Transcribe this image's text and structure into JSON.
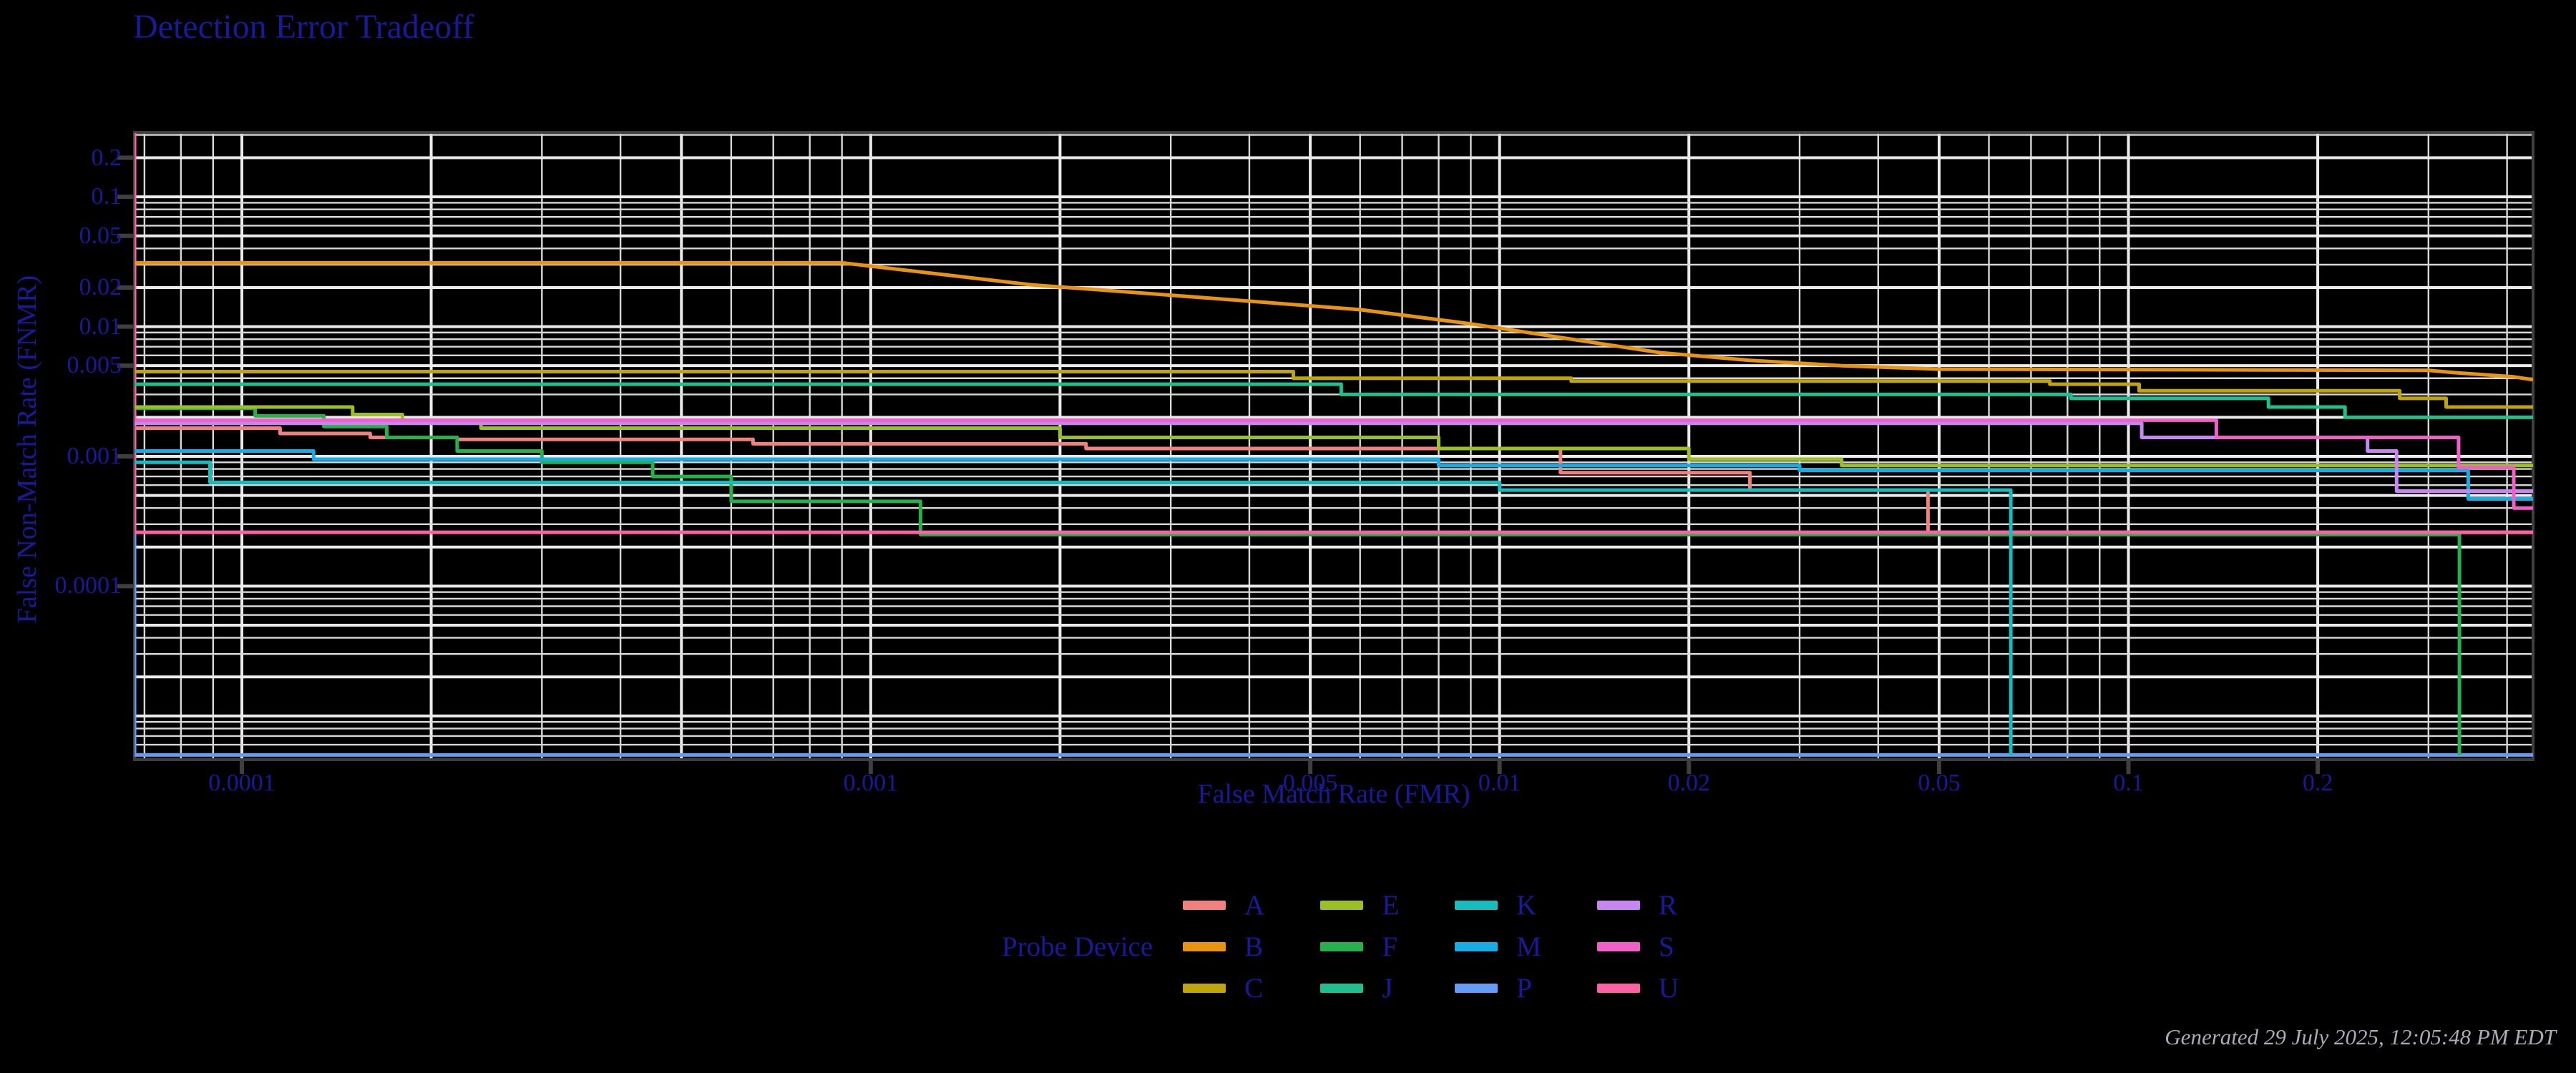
{
  "title": "Detection Error Tradeoff",
  "footer": {
    "generated": "Generated 29 July 2025, 12:05:48 PM EDT"
  },
  "legend": {
    "title": "Probe Device",
    "items": [
      "A",
      "B",
      "C",
      "E",
      "F",
      "J",
      "K",
      "M",
      "P",
      "R",
      "S",
      "U"
    ]
  },
  "colors": {
    "background": "#000000",
    "text_navy": "#1A1A99",
    "timestamp_gray": "#ABABB5",
    "grid_major": "#EBEBEB",
    "grid_minor": "#D8D8D8",
    "frame": "#3F3F3F",
    "tick": "#3F3F3F"
  },
  "chart_data": {
    "type": "line",
    "title": "Detection Error Tradeoff",
    "xlabel": "False Match Rate (FMR)",
    "ylabel": "False Non-Match Rate (FNMR)",
    "log_x": true,
    "log_y": true,
    "grid": "both",
    "xlim": [
      6.75e-05,
      0.44
    ],
    "ylim": [
      4.6e-06,
      0.314
    ],
    "x_ticks": [
      {
        "v": 0.0001,
        "label": "0.0001"
      },
      {
        "v": 0.001,
        "label": "0.001"
      },
      {
        "v": 0.005,
        "label": "0.005"
      },
      {
        "v": 0.01,
        "label": "0.01"
      },
      {
        "v": 0.02,
        "label": "0.02"
      },
      {
        "v": 0.05,
        "label": "0.05"
      },
      {
        "v": 0.1,
        "label": "0.1"
      },
      {
        "v": 0.2,
        "label": "0.2"
      }
    ],
    "y_ticks": [
      {
        "v": 0.2,
        "label": "0.2"
      },
      {
        "v": 0.1,
        "label": "0.1"
      },
      {
        "v": 0.05,
        "label": "0.05"
      },
      {
        "v": 0.02,
        "label": "0.02"
      },
      {
        "v": 0.01,
        "label": "0.01"
      },
      {
        "v": 0.005,
        "label": "0.005"
      },
      {
        "v": 0.001,
        "label": "0.001"
      },
      {
        "v": 0.0001,
        "label": "0.0001"
      }
    ],
    "legend_title": "Probe Device",
    "legend_position": "bottom",
    "series": [
      {
        "name": "P",
        "color": "#649CF5",
        "mode": "step",
        "points": [
          [
            6.75e-05,
            0.00055
          ],
          [
            6.75e-05,
            5e-06
          ],
          [
            0.44,
            5e-06
          ]
        ]
      },
      {
        "name": "A",
        "color": "#F0817E",
        "mode": "step",
        "points": [
          [
            6.75e-05,
            0.00165
          ],
          [
            0.000115,
            0.0015
          ],
          [
            0.00016,
            0.0014
          ],
          [
            0.00022,
            0.00135
          ],
          [
            0.00065,
            0.00125
          ],
          [
            0.0022,
            0.00115
          ],
          [
            0.0125,
            0.00075
          ],
          [
            0.025,
            0.00055
          ],
          [
            0.048,
            0.00026
          ],
          [
            0.44,
            0.00026
          ]
        ]
      },
      {
        "name": "F",
        "color": "#27B14C",
        "mode": "step",
        "points": [
          [
            6.75e-05,
            0.00235
          ],
          [
            0.000105,
            0.00205
          ],
          [
            0.000135,
            0.0017
          ],
          [
            0.00017,
            0.0014
          ],
          [
            0.00022,
            0.0011
          ],
          [
            0.0003,
            0.0009
          ],
          [
            0.00045,
            0.0007
          ],
          [
            0.0006,
            0.00045
          ],
          [
            0.0012,
            0.00025
          ],
          [
            0.336,
            0.00025
          ],
          [
            0.336,
            5e-06
          ]
        ]
      },
      {
        "name": "U",
        "color": "#FB62A4",
        "mode": "step",
        "points": [
          [
            6.75e-05,
            0.31
          ],
          [
            6.75e-05,
            0.00026
          ],
          [
            0.44,
            0.00026
          ]
        ]
      },
      {
        "name": "B",
        "color": "#E8940F",
        "mode": "linear",
        "points": [
          [
            6.75e-05,
            0.031
          ],
          [
            0.0009,
            0.031
          ],
          [
            0.0018,
            0.021
          ],
          [
            0.0035,
            0.0165
          ],
          [
            0.006,
            0.0135
          ],
          [
            0.009,
            0.0105
          ],
          [
            0.013,
            0.008
          ],
          [
            0.018,
            0.0063
          ],
          [
            0.025,
            0.0055
          ],
          [
            0.035,
            0.005
          ],
          [
            0.05,
            0.0047
          ],
          [
            0.3,
            0.0046
          ],
          [
            0.334,
            0.0044
          ],
          [
            0.41,
            0.0041
          ],
          [
            0.44,
            0.0039
          ]
        ]
      },
      {
        "name": "C",
        "color": "#BFA40A",
        "mode": "step",
        "points": [
          [
            6.75e-05,
            0.0045
          ],
          [
            0.0047,
            0.004
          ],
          [
            0.013,
            0.0038
          ],
          [
            0.075,
            0.0036
          ],
          [
            0.104,
            0.0032
          ],
          [
            0.27,
            0.0028
          ],
          [
            0.32,
            0.0024
          ],
          [
            0.44,
            0.0024
          ]
        ]
      },
      {
        "name": "E",
        "color": "#9CBF26",
        "mode": "step",
        "points": [
          [
            6.75e-05,
            0.0024
          ],
          [
            0.00015,
            0.0021
          ],
          [
            0.00018,
            0.00185
          ],
          [
            0.00024,
            0.00165
          ],
          [
            0.002,
            0.0014
          ],
          [
            0.008,
            0.00115
          ],
          [
            0.02,
            0.00095
          ],
          [
            0.035,
            0.00085
          ],
          [
            0.44,
            0.00085
          ]
        ]
      },
      {
        "name": "J",
        "color": "#1FBF8F",
        "mode": "step",
        "points": [
          [
            6.75e-05,
            0.0036
          ],
          [
            0.0056,
            0.003
          ],
          [
            0.081,
            0.0028
          ],
          [
            0.167,
            0.0024
          ],
          [
            0.221,
            0.002
          ],
          [
            0.44,
            0.002
          ]
        ]
      },
      {
        "name": "K",
        "color": "#17BCBC",
        "mode": "step",
        "points": [
          [
            6.75e-05,
            0.0009
          ],
          [
            8.9e-05,
            0.00063
          ],
          [
            0.01,
            0.00055
          ],
          [
            0.065,
            0.00055
          ],
          [
            0.065,
            5e-06
          ]
        ]
      },
      {
        "name": "M",
        "color": "#16ACE4",
        "mode": "step",
        "points": [
          [
            6.75e-05,
            0.0011
          ],
          [
            0.00013,
            0.00095
          ],
          [
            0.008,
            0.00085
          ],
          [
            0.03,
            0.00078
          ],
          [
            0.347,
            0.00047
          ],
          [
            0.44,
            0.00047
          ]
        ]
      },
      {
        "name": "R",
        "color": "#C687F0",
        "mode": "step",
        "points": [
          [
            6.75e-05,
            0.0018
          ],
          [
            0.105,
            0.0014
          ],
          [
            0.24,
            0.0011
          ],
          [
            0.267,
            0.00054
          ],
          [
            0.44,
            0.00054
          ]
        ]
      },
      {
        "name": "S",
        "color": "#F060C8",
        "mode": "step",
        "points": [
          [
            6.75e-05,
            0.0019
          ],
          [
            0.138,
            0.0014
          ],
          [
            0.335,
            0.00082
          ],
          [
            0.41,
            0.0004
          ],
          [
            0.44,
            0.0004
          ]
        ]
      }
    ]
  }
}
